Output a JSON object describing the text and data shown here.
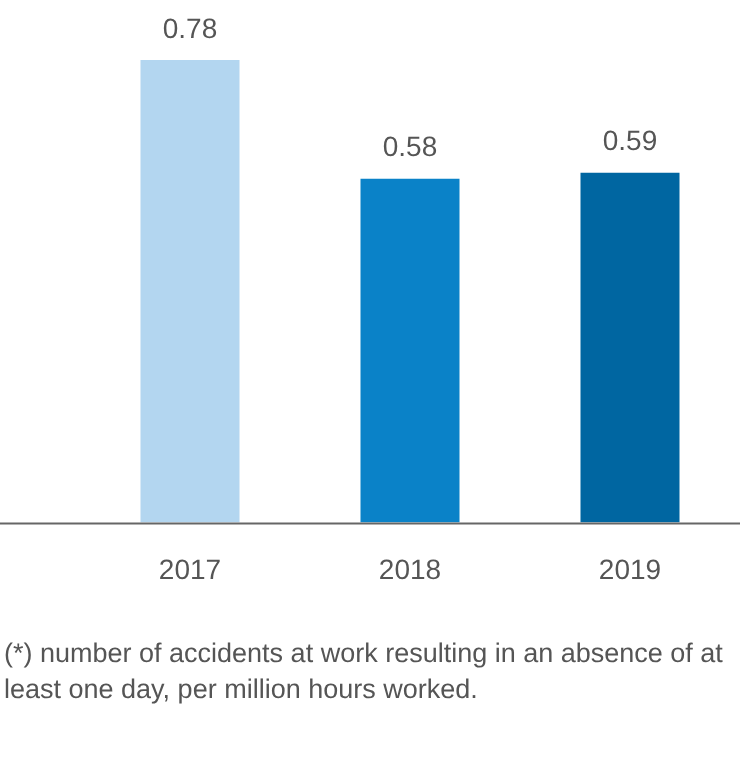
{
  "chart_data": {
    "type": "bar",
    "categories": [
      "2017",
      "2018",
      "2019"
    ],
    "values": [
      0.78,
      0.58,
      0.59
    ],
    "colors": [
      "#b3d6f0",
      "#0a82c8",
      "#0066a1"
    ],
    "data_labels": true,
    "tick_labels": "x",
    "grid": false,
    "legend": false,
    "annotations": [
      "(*)  number of accidents at work resulting in an absence of at least one day, per million hours worked."
    ]
  }
}
